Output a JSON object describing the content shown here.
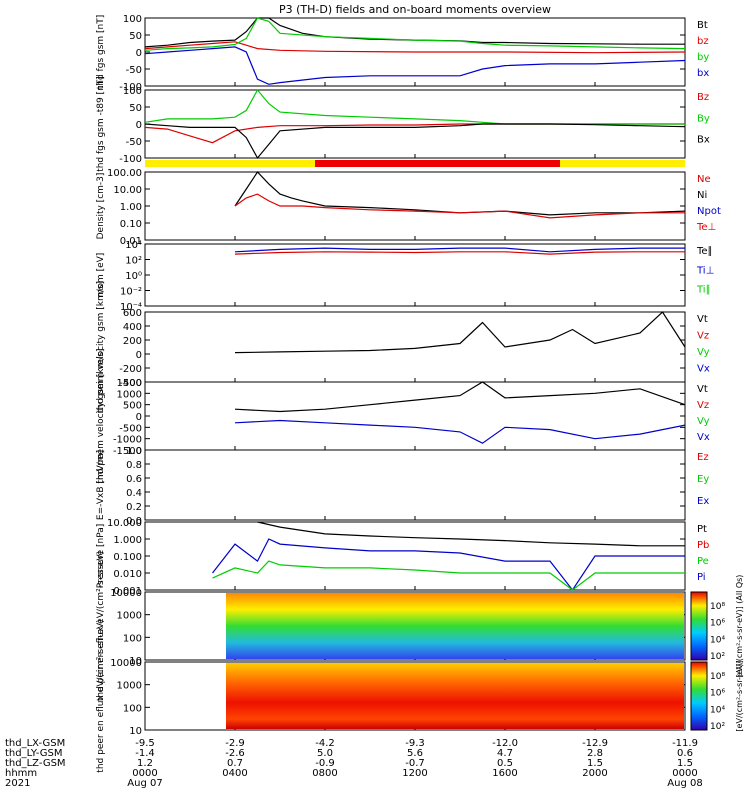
{
  "title": "P3 (TH-D) fields and on-board moments overview",
  "bottom": {
    "row_labels": [
      "thd_LX-GSM",
      "thd_LY-GSM",
      "thd_LZ-GSM",
      "hhmm",
      "2021"
    ],
    "columns": [
      [
        "-9.5",
        "-1.4",
        "1.2",
        "0000",
        "Aug 07"
      ],
      [
        "-2.9",
        "-2.6",
        "0.7",
        "0400",
        ""
      ],
      [
        "-4.2",
        "5.0",
        "-0.9",
        "0800",
        ""
      ],
      [
        "-9.3",
        "5.6",
        "-0.7",
        "1200",
        ""
      ],
      [
        "-12.0",
        "4.7",
        "0.5",
        "1600",
        ""
      ],
      [
        "-12.9",
        "2.8",
        "1.5",
        "2000",
        ""
      ],
      [
        "-11.9",
        "0.6",
        "1.5",
        "0000",
        "Aug 08"
      ]
    ]
  },
  "chart_data": [
    {
      "type": "line",
      "ylabel": "thd fgs gsm [nT]",
      "yticks": [
        "100",
        "50",
        "0",
        "-50",
        "-100"
      ],
      "ylim": [
        -100,
        100
      ],
      "legend": [
        {
          "name": "Bt",
          "color": "#000000"
        },
        {
          "name": "bz",
          "color": "#dd0000"
        },
        {
          "name": "by",
          "color": "#00cc00"
        },
        {
          "name": "bx",
          "color": "#0000cc"
        }
      ],
      "series": [
        {
          "name": "Bt",
          "color": "#000000",
          "x": [
            0,
            1,
            2,
            3,
            4,
            4.5,
            5,
            5.5,
            6,
            7,
            8,
            10,
            12,
            14,
            15,
            16,
            18,
            20,
            22,
            24
          ],
          "y": [
            15,
            20,
            28,
            32,
            35,
            60,
            100,
            100,
            78,
            55,
            45,
            38,
            35,
            33,
            28,
            28,
            25,
            24,
            23,
            23
          ]
        },
        {
          "name": "bz",
          "color": "#dd0000",
          "x": [
            0,
            1,
            2,
            3,
            4,
            4.5,
            5,
            6,
            8,
            12,
            16,
            20,
            24
          ],
          "y": [
            10,
            15,
            20,
            25,
            30,
            20,
            10,
            5,
            2,
            0,
            0,
            -2,
            0
          ]
        },
        {
          "name": "by",
          "color": "#00cc00",
          "x": [
            0,
            1,
            2,
            3,
            4,
            4.5,
            5,
            5.5,
            6,
            8,
            10,
            12,
            14,
            15,
            16,
            18,
            20,
            22,
            24
          ],
          "y": [
            5,
            10,
            12,
            15,
            22,
            40,
            100,
            90,
            55,
            45,
            40,
            35,
            32,
            25,
            20,
            18,
            15,
            12,
            10
          ]
        },
        {
          "name": "bx",
          "color": "#0000cc",
          "x": [
            0,
            1,
            2,
            3,
            4,
            4.5,
            5,
            5.5,
            6,
            8,
            10,
            12,
            14,
            15,
            16,
            18,
            20,
            22,
            24
          ],
          "y": [
            -5,
            0,
            5,
            10,
            15,
            0,
            -80,
            -95,
            -90,
            -75,
            -70,
            -70,
            -70,
            -50,
            -40,
            -35,
            -35,
            -30,
            -25
          ]
        }
      ]
    },
    {
      "type": "line",
      "ylabel": "thd fgs gsm -t89 [nT]",
      "yticks": [
        "100",
        "50",
        "0",
        "-50",
        "-100"
      ],
      "ylim": [
        -100,
        100
      ],
      "legend": [
        {
          "name": "Bz",
          "color": "#dd0000"
        },
        {
          "name": "By",
          "color": "#00cc00"
        },
        {
          "name": "Bx",
          "color": "#000000"
        }
      ],
      "series": [
        {
          "name": "Bz",
          "color": "#dd0000",
          "x": [
            0,
            1,
            2,
            3,
            4,
            5,
            6,
            8,
            10,
            12,
            14,
            16,
            18,
            20,
            22,
            24
          ],
          "y": [
            -10,
            -15,
            -35,
            -55,
            -20,
            -10,
            -5,
            -5,
            -3,
            -3,
            0,
            0,
            0,
            0,
            0,
            0
          ]
        },
        {
          "name": "By",
          "color": "#00cc00",
          "x": [
            0,
            1,
            2,
            3,
            4,
            4.5,
            5,
            5.5,
            6,
            8,
            10,
            12,
            14,
            15,
            16,
            18,
            20,
            22,
            24
          ],
          "y": [
            5,
            15,
            15,
            15,
            20,
            40,
            100,
            60,
            35,
            25,
            20,
            15,
            10,
            5,
            0,
            0,
            0,
            0,
            0
          ]
        },
        {
          "name": "Bx",
          "color": "#000000",
          "x": [
            0,
            1,
            2,
            3,
            4,
            4.5,
            5,
            5.5,
            6,
            8,
            10,
            12,
            14,
            15,
            16,
            18,
            20,
            22,
            24
          ],
          "y": [
            0,
            -5,
            -10,
            -10,
            -10,
            -40,
            -100,
            -60,
            -20,
            -10,
            -10,
            -10,
            -5,
            0,
            0,
            0,
            -2,
            -5,
            -8
          ]
        }
      ]
    },
    {
      "type": "line",
      "ylabel": "Density [cm-3]",
      "yticks": [
        "100.00",
        "10.00",
        "1.00",
        "0.10",
        "0.01"
      ],
      "ylim": [
        0.01,
        100
      ],
      "yscale": "log",
      "legend": [
        {
          "name": "Ne",
          "color": "#dd0000"
        },
        {
          "name": "Ni",
          "color": "#000000"
        },
        {
          "name": "Npot",
          "color": "#0000cc"
        },
        {
          "name": "Te⊥",
          "color": "#dd0000"
        }
      ],
      "series": [
        {
          "name": "Ni",
          "color": "#000000",
          "x": [
            4,
            4.5,
            5,
            5.5,
            6,
            6.5,
            7,
            8,
            10,
            12,
            14,
            16,
            18,
            20,
            22,
            24
          ],
          "y": [
            1,
            10,
            100,
            20,
            5,
            3,
            2,
            1,
            0.8,
            0.6,
            0.4,
            0.5,
            0.3,
            0.4,
            0.4,
            0.5
          ]
        },
        {
          "name": "Ne",
          "color": "#dd0000",
          "x": [
            4,
            4.5,
            5,
            5.5,
            6,
            7,
            8,
            10,
            12,
            14,
            16,
            18,
            20,
            22,
            24
          ],
          "y": [
            1,
            3,
            5,
            2,
            1,
            1,
            0.8,
            0.6,
            0.5,
            0.4,
            0.5,
            0.2,
            0.3,
            0.4,
            0.4
          ]
        }
      ]
    },
    {
      "type": "line",
      "ylabel": "mom [eV]",
      "yticks": [
        "10⁴",
        "10²",
        "10⁰",
        "10⁻²",
        "10⁻⁴"
      ],
      "ylim": [
        0.0001,
        10000
      ],
      "yscale": "log",
      "legend": [
        {
          "name": "Te∥",
          "color": "#000000"
        },
        {
          "name": "Ti⊥",
          "color": "#0000cc"
        },
        {
          "name": "Ti∥",
          "color": "#00cc00"
        }
      ],
      "series": [
        {
          "name": "Ti",
          "color": "#0000cc",
          "x": [
            4,
            6,
            8,
            10,
            12,
            14,
            16,
            18,
            20,
            22,
            24
          ],
          "y": [
            1000,
            2000,
            3000,
            2000,
            2000,
            3000,
            3000,
            1000,
            2000,
            3000,
            3000
          ]
        },
        {
          "name": "Te",
          "color": "#dd0000",
          "x": [
            4,
            6,
            8,
            10,
            12,
            14,
            16,
            18,
            20,
            22,
            24
          ],
          "y": [
            500,
            800,
            1000,
            900,
            800,
            1000,
            1000,
            500,
            900,
            1000,
            1000
          ]
        }
      ]
    },
    {
      "type": "line",
      "ylabel": "thd peim velocity gsm [km/s]",
      "yticks": [
        "600",
        "400",
        "200",
        "0",
        "-200",
        "-400"
      ],
      "ylim": [
        -400,
        600
      ],
      "legend": [
        {
          "name": "Vt",
          "color": "#000000"
        },
        {
          "name": "Vz",
          "color": "#dd0000"
        },
        {
          "name": "Vy",
          "color": "#00cc00"
        },
        {
          "name": "Vx",
          "color": "#0000cc"
        }
      ],
      "series": [
        {
          "name": "Vt",
          "color": "#000000",
          "x": [
            4,
            6,
            8,
            10,
            12,
            14,
            15,
            16,
            18,
            19,
            20,
            22,
            23,
            24
          ],
          "y": [
            20,
            30,
            40,
            50,
            80,
            150,
            450,
            100,
            200,
            350,
            150,
            300,
            600,
            100
          ]
        }
      ]
    },
    {
      "type": "line",
      "ylabel": "thd peem velocity gsm [km/s]",
      "yticks": [
        "1500",
        "1000",
        "500",
        "0",
        "-500",
        "-1000",
        "-1500"
      ],
      "ylim": [
        -1500,
        1500
      ],
      "legend": [
        {
          "name": "Vt",
          "color": "#000000"
        },
        {
          "name": "Vz",
          "color": "#dd0000"
        },
        {
          "name": "Vy",
          "color": "#00cc00"
        },
        {
          "name": "Vx",
          "color": "#0000cc"
        }
      ],
      "series": [
        {
          "name": "Vt",
          "color": "#000000",
          "x": [
            4,
            6,
            8,
            10,
            12,
            14,
            15,
            16,
            18,
            20,
            22,
            24
          ],
          "y": [
            300,
            200,
            300,
            500,
            700,
            900,
            1500,
            800,
            900,
            1000,
            1200,
            500
          ]
        },
        {
          "name": "Vx",
          "color": "#0000cc",
          "x": [
            4,
            6,
            8,
            10,
            12,
            14,
            15,
            16,
            18,
            20,
            22,
            24
          ],
          "y": [
            -300,
            -200,
            -300,
            -400,
            -500,
            -700,
            -1200,
            -500,
            -600,
            -1000,
            -800,
            -400
          ]
        }
      ]
    },
    {
      "type": "line",
      "ylabel": "E=-VxB [mV/m]",
      "yticks": [
        "1.0",
        "0.8",
        "0.6",
        "0.4",
        "0.2",
        "0.0"
      ],
      "ylim": [
        0,
        1
      ],
      "legend": [
        {
          "name": "Ez",
          "color": "#dd0000"
        },
        {
          "name": "Ey",
          "color": "#00cc00"
        },
        {
          "name": "Ex",
          "color": "#0000cc"
        }
      ],
      "series": []
    },
    {
      "type": "line",
      "ylabel": "Pressure [nPa]",
      "yticks": [
        "10.000",
        "1.000",
        "0.100",
        "0.010",
        "0.001"
      ],
      "ylim": [
        0.001,
        10
      ],
      "yscale": "log",
      "legend": [
        {
          "name": "Pt",
          "color": "#000000"
        },
        {
          "name": "Pb",
          "color": "#dd0000"
        },
        {
          "name": "Pe",
          "color": "#00cc00"
        },
        {
          "name": "Pi",
          "color": "#0000cc"
        }
      ],
      "series": [
        {
          "name": "Pt",
          "color": "#000000",
          "x": [
            5,
            6,
            8,
            10,
            12,
            14,
            16,
            18,
            20,
            22,
            24
          ],
          "y": [
            10,
            5,
            2,
            1.5,
            1.2,
            1,
            0.8,
            0.6,
            0.5,
            0.4,
            0.4
          ]
        },
        {
          "name": "Pi",
          "color": "#0000cc",
          "x": [
            3,
            4,
            5,
            5.5,
            6,
            8,
            10,
            12,
            14,
            16,
            18,
            19,
            20,
            22,
            24
          ],
          "y": [
            0.01,
            0.5,
            0.05,
            1,
            0.5,
            0.3,
            0.2,
            0.2,
            0.15,
            0.05,
            0.05,
            0.001,
            0.1,
            0.1,
            0.1
          ]
        },
        {
          "name": "Pe",
          "color": "#00cc00",
          "x": [
            3,
            4,
            5,
            5.5,
            6,
            8,
            10,
            12,
            14,
            16,
            18,
            19,
            20,
            22,
            24
          ],
          "y": [
            0.005,
            0.02,
            0.01,
            0.05,
            0.03,
            0.02,
            0.02,
            0.015,
            0.01,
            0.01,
            0.01,
            0.001,
            0.01,
            0.01,
            0.01
          ]
        }
      ]
    },
    {
      "type": "heatmap",
      "ylabel": "thd peir en eflux eV/(cm²-s-sr-eV)",
      "yticks": [
        "10000",
        "1000",
        "100",
        "10"
      ],
      "colorbar_ticks": [
        "10⁸",
        "10⁶",
        "10⁴",
        "10²"
      ],
      "colorbar_label": "[eV/(cm²-s-sr-eV)] (All Qs)"
    },
    {
      "type": "heatmap",
      "ylabel": "thd peer en eflux eV/(cm²-s-sr-eV)",
      "yticks": [
        "10000",
        "1000",
        "100",
        "10"
      ],
      "colorbar_ticks": [
        "10⁸",
        "10⁶",
        "10⁴",
        "10²"
      ],
      "colorbar_label": "[eV/(cm²-s-sr-eV)]"
    }
  ]
}
